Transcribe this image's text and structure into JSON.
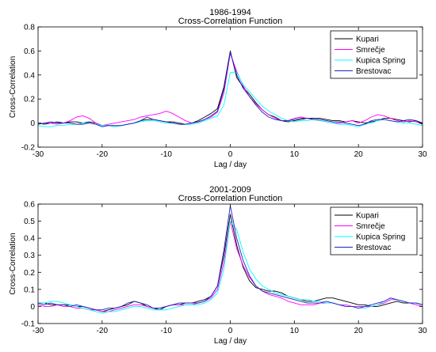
{
  "chart_data": [
    {
      "type": "line",
      "title": "1986-1994",
      "subtitle": "Cross-Correlation Function",
      "xlabel": "Lag / day",
      "ylabel": "Cross-Correlation",
      "xlim": [
        -30,
        30
      ],
      "ylim": [
        -0.2,
        0.8
      ],
      "xticks": [
        -30,
        -20,
        -10,
        0,
        10,
        20,
        30
      ],
      "yticks": [
        -0.2,
        0,
        0.2,
        0.4,
        0.6,
        0.8
      ],
      "xtick_labels": [
        "-30",
        "-20",
        "-10",
        "0",
        "10",
        "20",
        "30"
      ],
      "ytick_labels": [
        "-0.2",
        "0",
        "0.2",
        "0.4",
        "0.6",
        "0.8"
      ],
      "grid": false,
      "legend_position": "top-right",
      "x": [
        -30,
        -29,
        -28,
        -27,
        -26,
        -25,
        -24,
        -23,
        -22,
        -21,
        -20,
        -19,
        -18,
        -17,
        -16,
        -15,
        -14,
        -13,
        -12,
        -11,
        -10,
        -9,
        -8,
        -7,
        -6,
        -5,
        -4,
        -3,
        -2,
        -1,
        0,
        1,
        2,
        3,
        4,
        5,
        6,
        7,
        8,
        9,
        10,
        11,
        12,
        13,
        14,
        15,
        16,
        17,
        18,
        19,
        20,
        21,
        22,
        23,
        24,
        25,
        26,
        27,
        28,
        29,
        30
      ],
      "series": [
        {
          "name": "Kupari",
          "color": "#000000",
          "values": [
            0.0,
            -0.01,
            0.0,
            0.01,
            0.0,
            0.01,
            0.01,
            0.0,
            0.01,
            0.0,
            -0.02,
            -0.02,
            -0.03,
            -0.02,
            -0.01,
            0.0,
            0.02,
            0.03,
            0.03,
            0.02,
            0.01,
            0.01,
            0.0,
            -0.01,
            0.0,
            0.02,
            0.05,
            0.08,
            0.12,
            0.3,
            0.6,
            0.38,
            0.3,
            0.24,
            0.17,
            0.11,
            0.07,
            0.05,
            0.02,
            0.01,
            0.02,
            0.03,
            0.04,
            0.04,
            0.04,
            0.03,
            0.02,
            0.02,
            0.01,
            0.02,
            0.01,
            0.0,
            0.01,
            0.02,
            0.04,
            0.04,
            0.03,
            0.02,
            0.01,
            0.02,
            0.0
          ]
        },
        {
          "name": "Smrečje",
          "color": "#ff00ff",
          "values": [
            -0.01,
            0.0,
            0.0,
            -0.01,
            0.0,
            0.02,
            0.05,
            0.06,
            0.04,
            0.0,
            -0.02,
            -0.01,
            0.0,
            0.01,
            0.02,
            0.03,
            0.05,
            0.06,
            0.07,
            0.08,
            0.1,
            0.08,
            0.05,
            0.02,
            0.0,
            0.01,
            0.03,
            0.05,
            0.09,
            0.25,
            0.58,
            0.43,
            0.31,
            0.22,
            0.16,
            0.11,
            0.07,
            0.04,
            0.02,
            0.02,
            0.04,
            0.05,
            0.04,
            0.03,
            0.02,
            0.01,
            0.0,
            0.0,
            0.01,
            0.02,
            0.0,
            0.02,
            0.05,
            0.07,
            0.06,
            0.04,
            0.02,
            0.01,
            0.02,
            0.01,
            -0.01
          ]
        },
        {
          "name": "Kupica Spring",
          "color": "#00ffff",
          "values": [
            -0.02,
            -0.03,
            -0.03,
            -0.02,
            -0.02,
            -0.01,
            -0.01,
            0.0,
            0.0,
            -0.01,
            -0.02,
            -0.02,
            -0.03,
            -0.02,
            -0.01,
            0.0,
            0.01,
            0.02,
            0.02,
            0.01,
            0.0,
            0.0,
            -0.01,
            -0.01,
            -0.01,
            0.0,
            0.02,
            0.04,
            0.06,
            0.15,
            0.42,
            0.42,
            0.32,
            0.26,
            0.2,
            0.14,
            0.1,
            0.07,
            0.04,
            0.02,
            0.01,
            0.02,
            0.02,
            0.03,
            0.02,
            0.01,
            0.0,
            -0.01,
            -0.01,
            -0.02,
            -0.03,
            -0.01,
            0.0,
            0.02,
            0.03,
            0.02,
            0.01,
            0.0,
            0.0,
            -0.01,
            -0.02
          ]
        },
        {
          "name": "Brestovac",
          "color": "#2020c0",
          "values": [
            -0.01,
            0.0,
            0.01,
            0.0,
            0.0,
            0.0,
            -0.01,
            -0.01,
            0.0,
            -0.01,
            -0.03,
            -0.02,
            -0.02,
            -0.02,
            -0.01,
            0.0,
            0.02,
            0.05,
            0.03,
            0.02,
            0.01,
            0.0,
            -0.01,
            -0.01,
            0.0,
            0.01,
            0.03,
            0.06,
            0.1,
            0.28,
            0.59,
            0.4,
            0.29,
            0.22,
            0.15,
            0.09,
            0.05,
            0.03,
            0.02,
            0.02,
            0.03,
            0.04,
            0.04,
            0.03,
            0.03,
            0.02,
            0.01,
            0.01,
            0.0,
            -0.01,
            -0.02,
            -0.01,
            0.02,
            0.03,
            0.03,
            0.02,
            0.01,
            0.02,
            0.03,
            0.02,
            -0.01
          ]
        }
      ]
    },
    {
      "type": "line",
      "title": "2001-2009",
      "subtitle": "Cross-Correlation Function",
      "xlabel": "Lag / day",
      "ylabel": "Cross-Correlation",
      "xlim": [
        -30,
        30
      ],
      "ylim": [
        -0.1,
        0.6
      ],
      "xticks": [
        -30,
        -20,
        -10,
        0,
        10,
        20,
        30
      ],
      "yticks": [
        -0.1,
        0,
        0.1,
        0.2,
        0.3,
        0.4,
        0.5,
        0.6
      ],
      "xtick_labels": [
        "-30",
        "-20",
        "-10",
        "0",
        "10",
        "20",
        "30"
      ],
      "ytick_labels": [
        "-0.1",
        "0",
        "0.1",
        "0.2",
        "0.3",
        "0.4",
        "0.5",
        "0.6"
      ],
      "grid": false,
      "legend_position": "top-right",
      "x": [
        -30,
        -29,
        -28,
        -27,
        -26,
        -25,
        -24,
        -23,
        -22,
        -21,
        -20,
        -19,
        -18,
        -17,
        -16,
        -15,
        -14,
        -13,
        -12,
        -11,
        -10,
        -9,
        -8,
        -7,
        -6,
        -5,
        -4,
        -3,
        -2,
        -1,
        0,
        1,
        2,
        3,
        4,
        5,
        6,
        7,
        8,
        9,
        10,
        11,
        12,
        13,
        14,
        15,
        16,
        17,
        18,
        19,
        20,
        21,
        22,
        23,
        24,
        25,
        26,
        27,
        28,
        29,
        30
      ],
      "series": [
        {
          "name": "Kupari",
          "color": "#000000",
          "values": [
            0.02,
            0.02,
            0.01,
            0.01,
            0.01,
            0.01,
            0.0,
            0.0,
            -0.01,
            -0.02,
            -0.03,
            -0.02,
            -0.01,
            0.0,
            0.01,
            0.03,
            0.02,
            0.0,
            -0.01,
            -0.02,
            0.0,
            0.01,
            0.01,
            0.02,
            0.02,
            0.03,
            0.04,
            0.06,
            0.12,
            0.3,
            0.54,
            0.36,
            0.23,
            0.15,
            0.11,
            0.1,
            0.09,
            0.09,
            0.08,
            0.06,
            0.05,
            0.04,
            0.03,
            0.03,
            0.04,
            0.05,
            0.05,
            0.04,
            0.03,
            0.02,
            0.01,
            0.01,
            0.0,
            0.0,
            0.01,
            0.02,
            0.03,
            0.02,
            0.02,
            0.02,
            0.01
          ]
        },
        {
          "name": "Smrečje",
          "color": "#ff00ff",
          "values": [
            0.01,
            0.0,
            0.0,
            0.01,
            0.0,
            0.0,
            -0.01,
            -0.01,
            -0.02,
            -0.02,
            -0.03,
            -0.03,
            -0.02,
            -0.01,
            0.0,
            0.01,
            0.01,
            0.0,
            -0.01,
            -0.01,
            0.0,
            0.01,
            0.01,
            0.01,
            0.01,
            0.02,
            0.03,
            0.05,
            0.1,
            0.26,
            0.5,
            0.34,
            0.24,
            0.17,
            0.12,
            0.09,
            0.07,
            0.06,
            0.05,
            0.03,
            0.02,
            0.01,
            0.01,
            0.01,
            0.02,
            0.02,
            0.02,
            0.01,
            0.01,
            0.0,
            0.0,
            0.0,
            0.0,
            0.01,
            0.02,
            0.04,
            0.04,
            0.03,
            0.02,
            0.01,
            0.0
          ]
        },
        {
          "name": "Kupica Spring",
          "color": "#00ffff",
          "values": [
            0.02,
            0.02,
            0.03,
            0.03,
            0.02,
            0.01,
            0.0,
            -0.01,
            -0.02,
            -0.03,
            -0.04,
            -0.03,
            -0.03,
            -0.02,
            -0.01,
            0.0,
            0.0,
            -0.01,
            -0.02,
            -0.02,
            -0.02,
            -0.01,
            0.0,
            0.01,
            0.01,
            0.01,
            0.02,
            0.04,
            0.08,
            0.22,
            0.5,
            0.45,
            0.32,
            0.22,
            0.16,
            0.12,
            0.1,
            0.08,
            0.07,
            0.06,
            0.05,
            0.04,
            0.04,
            0.03,
            0.03,
            0.02,
            0.02,
            0.01,
            0.0,
            0.0,
            -0.01,
            -0.01,
            0.0,
            0.01,
            0.03,
            0.05,
            0.04,
            0.03,
            0.02,
            0.02,
            0.01
          ]
        },
        {
          "name": "Brestovac",
          "color": "#2020c0",
          "values": [
            0.02,
            0.01,
            0.02,
            0.01,
            0.01,
            0.0,
            0.01,
            0.0,
            -0.01,
            -0.02,
            -0.02,
            -0.01,
            -0.01,
            0.0,
            0.02,
            0.03,
            0.02,
            0.01,
            -0.01,
            -0.01,
            0.0,
            0.01,
            0.02,
            0.02,
            0.02,
            0.02,
            0.03,
            0.06,
            0.12,
            0.33,
            0.59,
            0.4,
            0.27,
            0.18,
            0.12,
            0.09,
            0.08,
            0.07,
            0.06,
            0.05,
            0.04,
            0.03,
            0.02,
            0.02,
            0.02,
            0.03,
            0.02,
            0.01,
            0.0,
            0.0,
            -0.01,
            0.0,
            0.01,
            0.02,
            0.03,
            0.05,
            0.04,
            0.03,
            0.02,
            0.02,
            0.01
          ]
        }
      ]
    }
  ]
}
